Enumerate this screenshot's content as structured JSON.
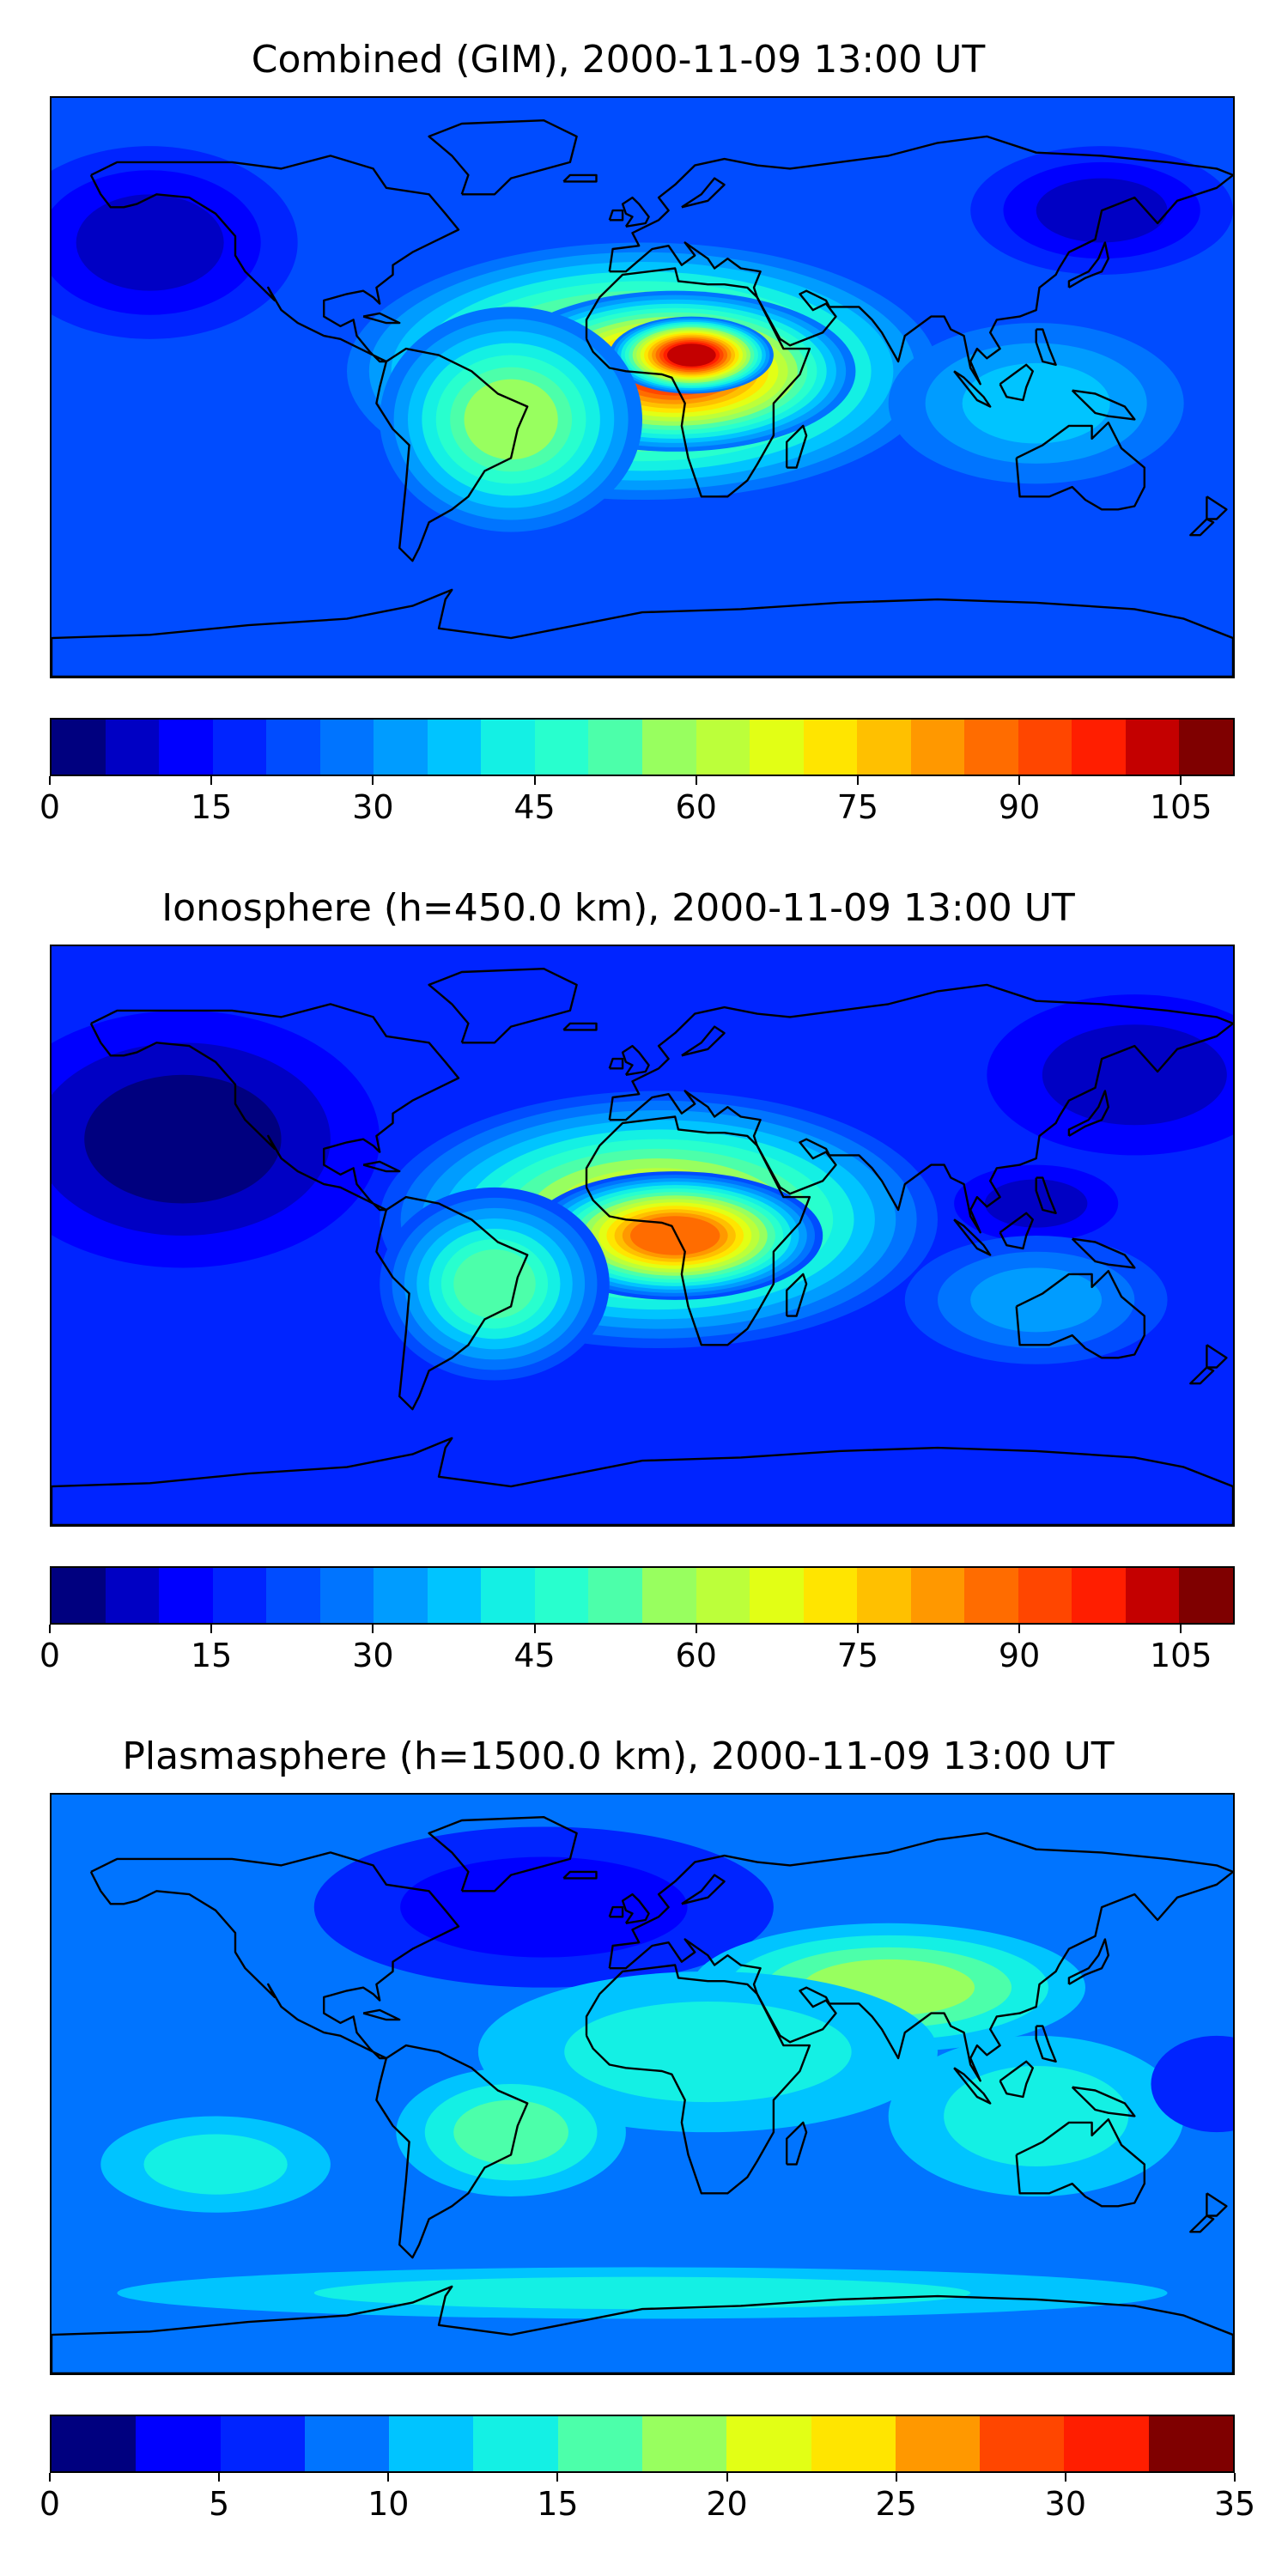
{
  "figure": {
    "panels": [
      {
        "title": "Combined (GIM), 2000-11-09 13:00 UT",
        "colorbar": {
          "min": 0,
          "max": 110,
          "step": 5,
          "ticks": [
            "0",
            "15",
            "30",
            "45",
            "60",
            "75",
            "90",
            "105"
          ],
          "tick_values": [
            0,
            15,
            30,
            45,
            60,
            75,
            90,
            105
          ]
        },
        "field": {
          "background_level": 20,
          "blobs": [
            {
              "lon": -150,
              "lat": 45,
              "level": 5,
              "rx": 45,
              "ry": 30
            },
            {
              "lon": 140,
              "lat": 55,
              "level": 8,
              "rx": 40,
              "ry": 20
            },
            {
              "lon": 0,
              "lat": 5,
              "level": 70,
              "rx": 90,
              "ry": 40
            },
            {
              "lon": 10,
              "lat": 5,
              "level": 90,
              "rx": 55,
              "ry": 25
            },
            {
              "lon": 15,
              "lat": 10,
              "level": 100,
              "rx": 25,
              "ry": 12
            },
            {
              "lon": -40,
              "lat": -10,
              "level": 55,
              "rx": 40,
              "ry": 35
            },
            {
              "lon": 120,
              "lat": -5,
              "level": 35,
              "rx": 45,
              "ry": 25
            },
            {
              "lon": 0,
              "lat": -60,
              "level": 22,
              "rx": 160,
              "ry": 12
            }
          ]
        }
      },
      {
        "title": "Ionosphere  (h=450.0 km), 2000-11-09 13:00 UT",
        "colorbar": {
          "min": 0,
          "max": 110,
          "step": 5,
          "ticks": [
            "0",
            "15",
            "30",
            "45",
            "60",
            "75",
            "90",
            "105"
          ],
          "tick_values": [
            0,
            15,
            30,
            45,
            60,
            75,
            90,
            105
          ]
        },
        "field": {
          "background_level": 15,
          "blobs": [
            {
              "lon": -140,
              "lat": 30,
              "level": 3,
              "rx": 60,
              "ry": 40
            },
            {
              "lon": 150,
              "lat": 50,
              "level": 5,
              "rx": 45,
              "ry": 25
            },
            {
              "lon": 5,
              "lat": 5,
              "level": 65,
              "rx": 85,
              "ry": 40
            },
            {
              "lon": 10,
              "lat": 0,
              "level": 85,
              "rx": 45,
              "ry": 20
            },
            {
              "lon": -45,
              "lat": -15,
              "level": 50,
              "rx": 35,
              "ry": 30
            },
            {
              "lon": 120,
              "lat": 10,
              "level": 8,
              "rx": 25,
              "ry": 12
            },
            {
              "lon": 120,
              "lat": -20,
              "level": 30,
              "rx": 40,
              "ry": 20
            }
          ]
        }
      },
      {
        "title": "Plasmasphere (h=1500.0 km), 2000-11-09 13:00 UT",
        "colorbar": {
          "min": 0,
          "max": 35,
          "step": 2.5,
          "ticks": [
            "0",
            "5",
            "10",
            "15",
            "20",
            "25",
            "30",
            "35"
          ],
          "tick_values": [
            0,
            5,
            10,
            15,
            20,
            25,
            30,
            35
          ]
        },
        "field": {
          "background_level": 8,
          "blobs": [
            {
              "lon": -30,
              "lat": 55,
              "level": 3,
              "rx": 70,
              "ry": 25
            },
            {
              "lon": 75,
              "lat": 30,
              "level": 18,
              "rx": 60,
              "ry": 20
            },
            {
              "lon": 20,
              "lat": 10,
              "level": 14,
              "rx": 70,
              "ry": 25
            },
            {
              "lon": -40,
              "lat": -15,
              "level": 15,
              "rx": 35,
              "ry": 20
            },
            {
              "lon": -130,
              "lat": -25,
              "level": 13,
              "rx": 35,
              "ry": 15
            },
            {
              "lon": 120,
              "lat": -10,
              "level": 13,
              "rx": 45,
              "ry": 25
            },
            {
              "lon": 0,
              "lat": -65,
              "level": 13,
              "rx": 160,
              "ry": 8
            },
            {
              "lon": 175,
              "lat": 0,
              "level": 6,
              "rx": 20,
              "ry": 15
            }
          ]
        }
      }
    ],
    "colormap": [
      "#00007f",
      "#0000c4",
      "#0000ff",
      "#0024ff",
      "#004cff",
      "#0074ff",
      "#009cff",
      "#00c4ff",
      "#14f0e4",
      "#28ffce",
      "#4cffaa",
      "#72ff84",
      "#98ff5f",
      "#bcff3a",
      "#e2ff15",
      "#ffe500",
      "#ffc000",
      "#ff9800",
      "#ff6c00",
      "#ff4600",
      "#ff1e00",
      "#c40000",
      "#7f0000"
    ],
    "colors": {
      "coastline": "#000000",
      "frame": "#000000"
    }
  }
}
